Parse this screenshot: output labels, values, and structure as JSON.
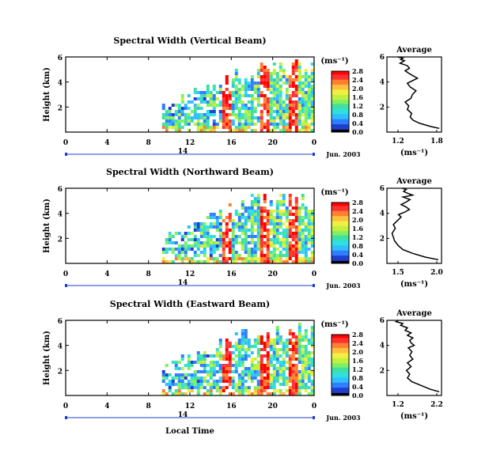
{
  "colors": {
    "scale": [
      "#000000",
      "#303090",
      "#1f3fcf",
      "#2f7fff",
      "#2fbfff",
      "#2fe0e0",
      "#40e0a0",
      "#80f060",
      "#c0f040",
      "#f0f040",
      "#ffc040",
      "#ff8030",
      "#ff3030",
      "#ff0000"
    ],
    "axis": "#000000",
    "date_rule": "#1f3fcf",
    "profile": "#000000"
  },
  "shared": {
    "xlabel": "Local Time",
    "date_label": "Jun. 2003",
    "date_day": "14",
    "unit_label": "(ms⁻¹)",
    "avg_title": "Average",
    "avg_xlabel": "(ms⁻¹)"
  },
  "chart_data": [
    {
      "type": "heatmap",
      "title": "Spectral Width (Vertical Beam)",
      "ylabel": "Height (km)",
      "xlim": [
        0,
        24
      ],
      "ylim": [
        0,
        6
      ],
      "x_ticks": [
        "0",
        "4",
        "8",
        "12",
        "16",
        "20",
        "0"
      ],
      "y_ticks": [
        "6",
        "4",
        "2"
      ],
      "colorbar": {
        "unit": "(ms⁻¹)",
        "ticks": [
          "0.0",
          "0.4",
          "0.8",
          "1.2",
          "1.6",
          "2.0",
          "2.4",
          "2.8"
        ]
      },
      "data_onset_hour": 9
    },
    {
      "type": "line",
      "title": "Average",
      "xlabel": "(ms⁻¹)",
      "x_ticks": [
        "1.2",
        "1.8"
      ],
      "y_ticks": [
        "6",
        "4",
        "2"
      ],
      "xlim": [
        1.1,
        1.85
      ],
      "ylim": [
        0,
        6
      ],
      "series": [
        {
          "x": [
            1.82,
            1.7,
            1.55,
            1.46,
            1.42,
            1.44,
            1.38,
            1.4,
            1.35,
            1.43,
            1.45,
            1.5,
            1.42,
            1.38,
            1.45,
            1.52,
            1.46,
            1.4,
            1.35,
            1.41,
            1.38,
            1.28,
            1.34,
            1.29,
            1.32,
            1.25
          ],
          "y": [
            0.3,
            0.45,
            0.7,
            0.95,
            1.2,
            1.5,
            1.8,
            2.1,
            2.4,
            2.7,
            3.0,
            3.3,
            3.6,
            3.9,
            4.1,
            4.3,
            4.5,
            4.7,
            4.9,
            5.1,
            5.3,
            5.5,
            5.7,
            5.8,
            5.9,
            6.0
          ]
        }
      ]
    },
    {
      "type": "heatmap",
      "title": "Spectral Width (Northward Beam)",
      "ylabel": "Height (km)",
      "xlim": [
        0,
        24
      ],
      "ylim": [
        0,
        6
      ],
      "x_ticks": [
        "0",
        "4",
        "8",
        "12",
        "16",
        "20",
        "0"
      ],
      "y_ticks": [
        "6",
        "4",
        "2"
      ],
      "colorbar": {
        "unit": "(ms⁻¹)",
        "ticks": [
          "0.0",
          "0.4",
          "0.8",
          "1.2",
          "1.6",
          "2.0",
          "2.4",
          "2.8"
        ]
      },
      "data_onset_hour": 9
    },
    {
      "type": "line",
      "title": "Average",
      "xlabel": "(ms⁻¹)",
      "x_ticks": [
        "1.5",
        "2.0"
      ],
      "y_ticks": [
        "6",
        "4",
        "2"
      ],
      "xlim": [
        1.2,
        2.05
      ],
      "ylim": [
        0,
        6
      ],
      "series": [
        {
          "x": [
            2.0,
            1.8,
            1.6,
            1.45,
            1.38,
            1.32,
            1.3,
            1.28,
            1.33,
            1.3,
            1.36,
            1.42,
            1.38,
            1.48,
            1.55,
            1.5,
            1.42,
            1.5,
            1.56,
            1.45,
            1.6,
            1.52,
            1.46,
            1.5,
            1.44
          ],
          "y": [
            0.3,
            0.5,
            0.8,
            1.1,
            1.4,
            1.8,
            2.1,
            2.4,
            2.8,
            3.1,
            3.4,
            3.7,
            3.9,
            4.1,
            4.3,
            4.5,
            4.7,
            4.9,
            5.1,
            5.3,
            5.45,
            5.6,
            5.75,
            5.9,
            6.0
          ]
        }
      ]
    },
    {
      "type": "heatmap",
      "title": "Spectral Width (Eastward Beam)",
      "ylabel": "Height (km)",
      "xlim": [
        0,
        24
      ],
      "ylim": [
        0,
        6
      ],
      "x_ticks": [
        "0",
        "4",
        "8",
        "12",
        "16",
        "20",
        "0"
      ],
      "y_ticks": [
        "6",
        "4",
        "2"
      ],
      "colorbar": {
        "unit": "(ms⁻¹)",
        "ticks": [
          "0.0",
          "0.4",
          "0.8",
          "1.2",
          "1.6",
          "2.0",
          "2.4",
          "2.8"
        ]
      },
      "data_onset_hour": 9
    },
    {
      "type": "line",
      "title": "Average",
      "xlabel": "(ms⁻¹)",
      "x_ticks": [
        "1.2",
        "2.2"
      ],
      "y_ticks": [
        "6",
        "4",
        "2"
      ],
      "xlim": [
        1.05,
        2.25
      ],
      "ylim": [
        0,
        6
      ],
      "series": [
        {
          "x": [
            2.2,
            2.0,
            1.8,
            1.6,
            1.5,
            1.55,
            1.48,
            1.58,
            1.5,
            1.62,
            1.55,
            1.6,
            1.52,
            1.65,
            1.58,
            1.55,
            1.62,
            1.5,
            1.58,
            1.45,
            1.5,
            1.35,
            1.4,
            1.25,
            1.3
          ],
          "y": [
            0.3,
            0.5,
            0.8,
            1.1,
            1.4,
            1.7,
            2.0,
            2.3,
            2.6,
            2.9,
            3.2,
            3.5,
            3.8,
            4.0,
            4.2,
            4.4,
            4.6,
            4.8,
            5.0,
            5.2,
            5.4,
            5.6,
            5.75,
            5.9,
            6.0
          ]
        }
      ]
    }
  ]
}
